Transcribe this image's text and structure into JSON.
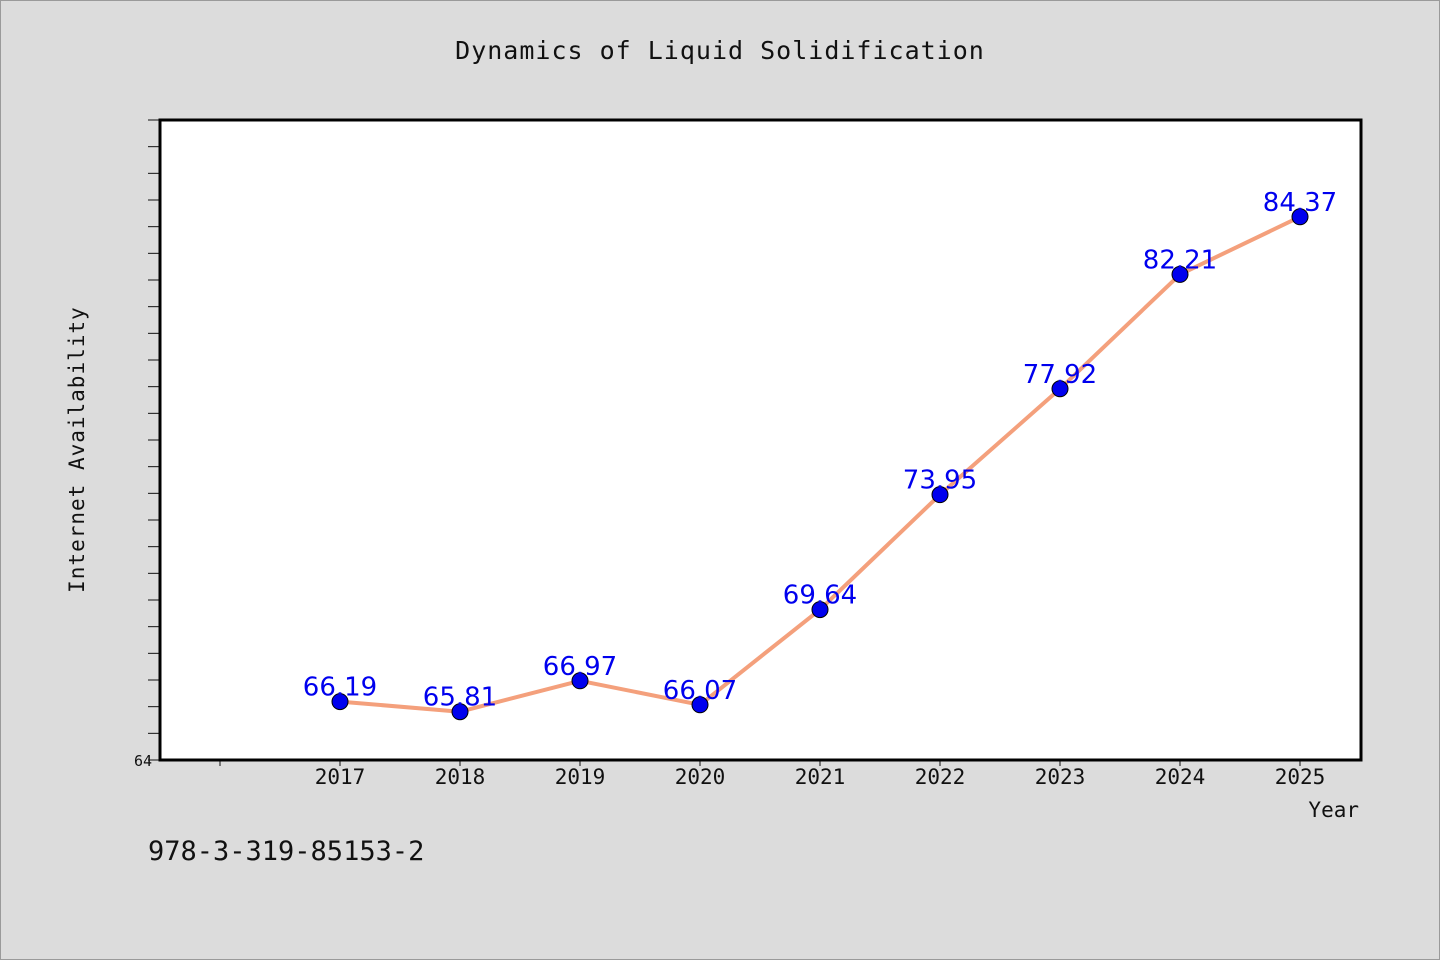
{
  "chart_data": {
    "type": "line",
    "title": "Dynamics of Liquid Solidification",
    "xlabel": "Year",
    "ylabel": "Internet Availability",
    "x": [
      "2017",
      "2018",
      "2019",
      "2020",
      "2021",
      "2022",
      "2023",
      "2024",
      "2025"
    ],
    "series": [
      {
        "values": [
          66.19,
          65.81,
          66.97,
          66.07,
          69.64,
          73.95,
          77.92,
          82.21,
          84.37
        ],
        "value_labels": [
          "66.19",
          "65.81",
          "66.97",
          "66.07",
          "69.64",
          "73.95",
          "77.92",
          "82.21",
          "84.37"
        ]
      }
    ],
    "ylim": [
      64,
      88
    ],
    "y_tick_labels": [
      "64"
    ],
    "grid": false,
    "line_color": "#f4a07c",
    "marker_color": "#0000ee",
    "label_color": "#0000ee"
  },
  "footer": {
    "code": "978-3-319-85153-2"
  }
}
